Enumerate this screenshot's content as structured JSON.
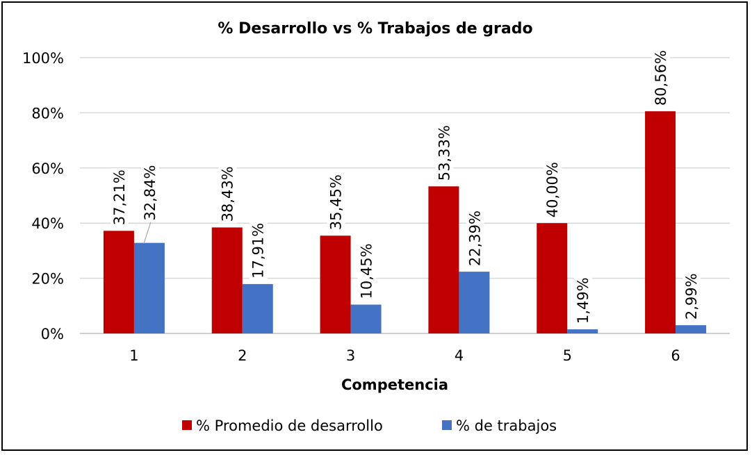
{
  "chart_data": {
    "type": "bar",
    "title": "% Desarrollo vs % Trabajos de grado",
    "xlabel": "Competencia",
    "ylabel": "",
    "categories": [
      "1",
      "2",
      "3",
      "4",
      "5",
      "6"
    ],
    "ylim": [
      0,
      100
    ],
    "yticks": [
      0,
      20,
      40,
      60,
      80,
      100
    ],
    "ytick_labels": [
      "0%",
      "20%",
      "40%",
      "60%",
      "80%",
      "100%"
    ],
    "grid": true,
    "legend_position": "bottom",
    "series": [
      {
        "name": "% Promedio de desarrollo",
        "color": "#C00000",
        "values": [
          37.21,
          38.43,
          35.45,
          53.33,
          40.0,
          80.56
        ],
        "labels": [
          "37,21%",
          "38,43%",
          "35,45%",
          "53,33%",
          "40,00%",
          "80,56%"
        ]
      },
      {
        "name": "% de trabajos",
        "color": "#4472C4",
        "values": [
          32.84,
          17.91,
          10.45,
          22.39,
          1.49,
          2.99
        ],
        "labels": [
          "32,84%",
          "17,91%",
          "10,45%",
          "22,39%",
          "1,49%",
          "2,99%"
        ]
      }
    ]
  }
}
